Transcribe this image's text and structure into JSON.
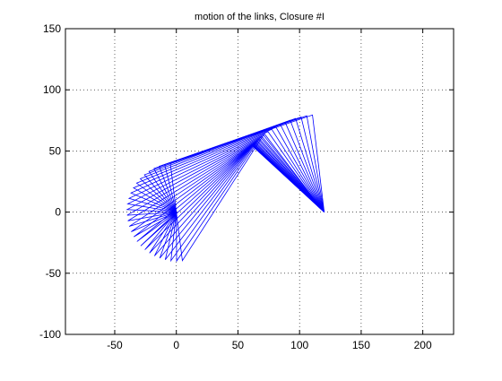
{
  "chart_data": {
    "type": "line",
    "title": "motion of the links, Closure #I",
    "xlabel": "",
    "ylabel": "",
    "xlim": [
      -90,
      225
    ],
    "ylim": [
      -100,
      150
    ],
    "xticks": [
      -50,
      0,
      50,
      100,
      150,
      200
    ],
    "yticks": [
      -100,
      -50,
      0,
      50,
      100,
      150
    ],
    "grid": "dotted",
    "line_color": "#0000ff",
    "series": [
      {
        "ground_pivot_a": [
          0,
          0
        ],
        "ground_pivot_b": [
          120,
          0
        ],
        "crank_length": 40,
        "coupler_length": 122,
        "rocker_length": 80,
        "crank_angle_start_deg": 97,
        "crank_angle_end_deg": 277,
        "positions": 28
      }
    ]
  }
}
